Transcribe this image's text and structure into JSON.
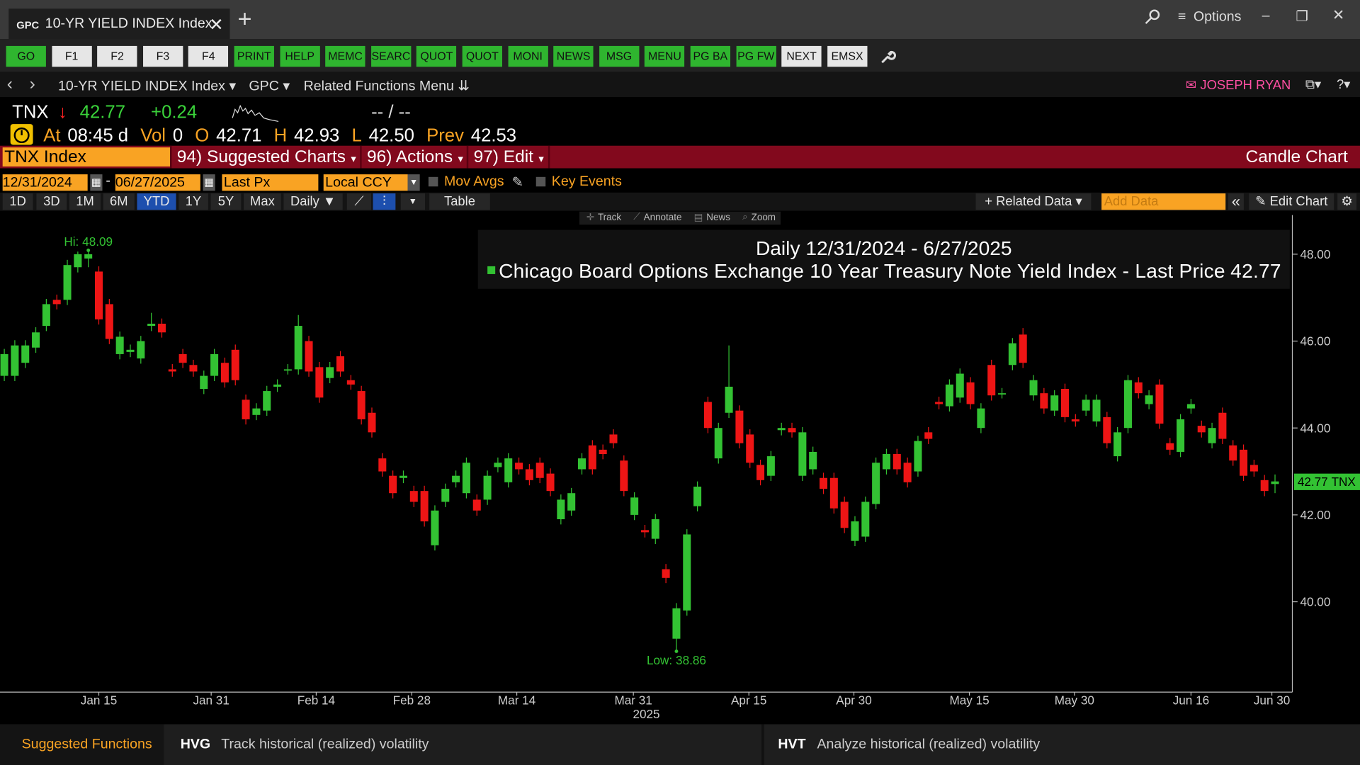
{
  "tab": {
    "prefix": "GPC",
    "title": "10-YR YIELD INDEX Index"
  },
  "window": {
    "options": "Options"
  },
  "toolbar": [
    {
      "label": "GO",
      "color": "#2fb52f"
    },
    {
      "label": "F1",
      "color": "#e6e6e6"
    },
    {
      "label": "F2",
      "color": "#e6e6e6"
    },
    {
      "label": "F3",
      "color": "#e6e6e6"
    },
    {
      "label": "F4",
      "color": "#e6e6e6"
    },
    {
      "label": "PRINT",
      "color": "#2fb52f"
    },
    {
      "label": "HELP",
      "color": "#2fb52f"
    },
    {
      "label": "MEMC",
      "color": "#2fb52f"
    },
    {
      "label": "SEARC",
      "color": "#2fb52f"
    },
    {
      "label": "QUOT",
      "color": "#2fb52f"
    },
    {
      "label": "QUOT",
      "color": "#2fb52f"
    },
    {
      "label": "MONI",
      "color": "#2fb52f"
    },
    {
      "label": "NEWS",
      "color": "#2fb52f"
    },
    {
      "label": "MSG",
      "color": "#2fb52f"
    },
    {
      "label": "MENU",
      "color": "#2fb52f"
    },
    {
      "label": "PG BA",
      "color": "#2fb52f"
    },
    {
      "label": "PG FW",
      "color": "#2fb52f"
    },
    {
      "label": "NEXT",
      "color": "#e6e6e6"
    },
    {
      "label": "EMSX",
      "color": "#e6e6e6"
    }
  ],
  "nav": {
    "security": "10-YR YIELD INDEX Index",
    "source": "GPC",
    "menu": "Related Functions Menu",
    "user": "JOSEPH RYAN"
  },
  "quote": {
    "ticker": "TNX",
    "last": "42.77",
    "change": "+0.24",
    "bid_ask": "-- / --",
    "stats": [
      {
        "label": "At",
        "value": "08:45 d"
      },
      {
        "label": "Vol",
        "value": "0"
      },
      {
        "label": "O",
        "value": "42.71"
      },
      {
        "label": "H",
        "value": "42.93"
      },
      {
        "label": "L",
        "value": "42.50"
      },
      {
        "label": "Prev",
        "value": "42.53"
      }
    ]
  },
  "security_bar": {
    "field": "TNX Index",
    "menus": [
      "94) Suggested Charts",
      "96) Actions",
      "97) Edit"
    ],
    "chart_type": "Candle Chart"
  },
  "controls": {
    "start": "12/31/2024",
    "separator": "-",
    "end": "06/27/2025",
    "field": "Last Px",
    "currency": "Local CCY",
    "checks": [
      "Mov Avgs",
      "Key Events"
    ],
    "ranges": [
      {
        "label": "1D"
      },
      {
        "label": "3D"
      },
      {
        "label": "1M"
      },
      {
        "label": "6M"
      },
      {
        "label": "YTD",
        "active": true
      },
      {
        "label": "1Y"
      },
      {
        "label": "5Y"
      },
      {
        "label": "Max"
      }
    ],
    "frequency": "Daily",
    "table": "Table",
    "related": "Related Data",
    "add": "Add Data",
    "edit": "Edit Chart"
  },
  "chart_tools": [
    "Track",
    "Annotate",
    "News",
    "Zoom"
  ],
  "chart_data": {
    "type": "candlestick",
    "title": "Daily 12/31/2024 - 6/27/2025",
    "series_name": "Chicago Board Options Exchange 10 Year Treasury Note Yield Index - Last Price",
    "up_color": "#33c233",
    "down_color": "#ee1515",
    "hi_label": "Hi:",
    "low_label": "Low:",
    "ylim": [
      37.92,
      48.7
    ],
    "yticks": [
      {
        "value": 40,
        "label": "40.00"
      },
      {
        "value": 42,
        "label": "42.00"
      },
      {
        "value": 44,
        "label": "44.00"
      },
      {
        "value": 46,
        "label": "46.00"
      },
      {
        "value": 48,
        "label": "48.00"
      }
    ],
    "xlim": [
      -0.41,
      122.65
    ],
    "xticks": [
      {
        "value": 9,
        "label": "Jan 15"
      },
      {
        "value": 19.7,
        "label": "Jan 31"
      },
      {
        "value": 29.7,
        "label": "Feb 14"
      },
      {
        "value": 38.8,
        "label": "Feb 28"
      },
      {
        "value": 48.8,
        "label": "Mar 14"
      },
      {
        "value": 59.9,
        "label": "Mar 31",
        "sublabel": "2025"
      },
      {
        "value": 70.9,
        "label": "Apr 15"
      },
      {
        "value": 80.9,
        "label": "Apr 30"
      },
      {
        "value": 91.9,
        "label": "May 15"
      },
      {
        "value": 101.9,
        "label": "May 30"
      },
      {
        "value": 113,
        "label": "Jun 16"
      },
      {
        "value": 120.7,
        "label": "Jun 30"
      }
    ],
    "open": [
      45.2,
      45.2,
      45.5,
      45.85,
      46.35,
      46.95,
      46.95,
      47.7,
      47.9,
      47.6,
      46.85,
      45.7,
      45.75,
      45.6,
      46.35,
      46.4,
      45.35,
      45.7,
      45.45,
      44.9,
      45.2,
      45.5,
      45.8,
      44.65,
      44.3,
      44.4,
      44.95,
      45.35,
      45.35,
      46.0,
      45.4,
      45.15,
      45.65,
      45.1,
      44.85,
      44.35,
      43.3,
      42.9,
      42.85,
      42.55,
      42.55,
      41.3,
      42.3,
      42.75,
      42.5,
      42.35,
      42.35,
      43.1,
      42.75,
      43.2,
      43.05,
      43.2,
      42.95,
      41.9,
      42.1,
      43.05,
      43.6,
      43.5,
      43.85,
      43.25,
      42.0,
      41.65,
      41.45,
      40.75,
      39.15,
      39.8,
      42.2,
      44.6,
      43.3,
      44.35,
      44.4,
      43.85,
      43.15,
      42.9,
      43.95,
      44.0,
      42.9,
      43.05,
      42.85,
      42.85,
      42.3,
      41.4,
      41.5,
      42.25,
      43.05,
      43.4,
      43.2,
      43.0,
      43.9,
      44.6,
      44.5,
      44.7,
      45.05,
      44.0,
      45.45,
      44.8,
      45.45,
      46.15,
      44.75,
      44.8,
      44.4,
      44.9,
      44.2,
      44.4,
      44.15,
      44.25,
      43.35,
      44.0,
      45.05,
      44.55,
      45.0,
      43.65,
      43.45,
      44.45,
      44.05,
      43.65,
      44.35,
      43.6,
      43.5,
      43.15,
      42.8,
      42.71
    ],
    "high": [
      45.82,
      46.02,
      46.02,
      46.32,
      46.97,
      47.07,
      47.87,
      48.06,
      48.09,
      47.72,
      46.97,
      46.22,
      45.92,
      46.12,
      46.65,
      46.52,
      45.47,
      45.82,
      45.57,
      45.32,
      45.82,
      45.62,
      45.92,
      44.77,
      44.57,
      44.97,
      45.12,
      45.47,
      46.6,
      46.12,
      45.52,
      45.52,
      45.77,
      45.22,
      44.97,
      44.47,
      43.42,
      43.02,
      43.02,
      42.67,
      42.67,
      42.22,
      42.72,
      43.02,
      43.32,
      42.47,
      43.02,
      43.32,
      43.42,
      43.32,
      43.17,
      43.32,
      43.07,
      42.47,
      42.62,
      43.42,
      43.72,
      43.62,
      43.97,
      43.37,
      42.52,
      41.77,
      42.02,
      40.87,
      39.97,
      41.67,
      42.77,
      44.72,
      44.12,
      45.9,
      44.52,
      43.97,
      43.27,
      43.47,
      44.12,
      44.12,
      44.02,
      43.57,
      42.97,
      42.97,
      42.42,
      41.97,
      42.42,
      43.32,
      43.52,
      43.52,
      43.32,
      43.82,
      44.02,
      44.72,
      45.12,
      45.37,
      45.17,
      44.57,
      45.57,
      44.92,
      46.07,
      46.3,
      45.22,
      44.92,
      44.87,
      45.02,
      44.32,
      44.77,
      44.77,
      44.37,
      44.02,
      45.22,
      45.17,
      44.87,
      45.12,
      43.77,
      44.32,
      44.67,
      44.17,
      44.12,
      44.47,
      43.72,
      43.62,
      43.27,
      42.92,
      42.93
    ],
    "low": [
      45.08,
      45.08,
      45.38,
      45.73,
      46.23,
      46.73,
      46.83,
      47.58,
      47.7,
      46.38,
      45.93,
      45.58,
      45.63,
      45.48,
      46.23,
      46.08,
      45.18,
      45.38,
      45.18,
      44.78,
      45.08,
      44.93,
      44.98,
      44.08,
      44.18,
      44.28,
      44.83,
      45.23,
      45.23,
      45.18,
      44.58,
      45.03,
      45.18,
      44.88,
      44.08,
      43.78,
      42.88,
      42.38,
      42.73,
      42.18,
      41.73,
      41.18,
      42.18,
      42.63,
      42.38,
      41.98,
      42.23,
      42.98,
      42.63,
      42.93,
      42.68,
      42.73,
      42.43,
      41.78,
      41.98,
      42.93,
      42.93,
      43.28,
      43.53,
      42.43,
      41.88,
      41.48,
      41.33,
      40.43,
      38.86,
      39.68,
      42.08,
      43.88,
      43.18,
      44.23,
      43.53,
      43.08,
      42.68,
      42.78,
      43.83,
      43.78,
      42.78,
      42.93,
      42.48,
      42.03,
      41.58,
      41.28,
      41.38,
      42.13,
      42.93,
      42.93,
      42.63,
      42.88,
      43.63,
      44.43,
      44.38,
      44.58,
      44.43,
      43.88,
      44.63,
      44.68,
      45.33,
      45.38,
      44.63,
      44.33,
      44.28,
      44.13,
      44.03,
      44.28,
      44.03,
      43.53,
      43.23,
      43.88,
      44.68,
      44.43,
      43.98,
      43.38,
      43.33,
      44.33,
      43.78,
      43.53,
      43.63,
      43.13,
      42.78,
      42.88,
      42.43,
      42.5
    ],
    "close": [
      45.7,
      45.9,
      45.9,
      46.2,
      46.85,
      46.85,
      47.75,
      48.0,
      48.0,
      46.5,
      46.05,
      46.1,
      45.8,
      46.0,
      46.4,
      46.2,
      45.3,
      45.5,
      45.3,
      45.2,
      45.7,
      45.05,
      45.1,
      44.2,
      44.45,
      44.85,
      45.0,
      45.35,
      46.35,
      45.3,
      44.7,
      45.4,
      45.3,
      45.0,
      44.2,
      43.9,
      43.0,
      42.5,
      42.9,
      42.3,
      41.85,
      42.1,
      42.6,
      42.9,
      43.2,
      42.1,
      42.9,
      43.2,
      43.3,
      43.05,
      42.8,
      42.85,
      42.55,
      42.35,
      42.5,
      43.3,
      43.05,
      43.4,
      43.65,
      42.55,
      42.4,
      41.6,
      41.9,
      40.55,
      39.85,
      41.55,
      42.65,
      44.0,
      44.0,
      44.95,
      43.65,
      43.2,
      42.8,
      43.35,
      44.0,
      43.9,
      43.9,
      43.45,
      42.6,
      42.15,
      41.7,
      41.85,
      42.3,
      43.2,
      43.4,
      43.05,
      42.75,
      43.7,
      43.75,
      44.55,
      45.0,
      45.25,
      44.55,
      44.45,
      44.75,
      44.8,
      45.95,
      45.5,
      45.1,
      44.45,
      44.75,
      44.25,
      44.15,
      44.65,
      44.65,
      43.65,
      43.9,
      45.1,
      44.8,
      44.75,
      44.1,
      43.5,
      44.2,
      44.55,
      43.9,
      44.0,
      43.75,
      43.25,
      42.9,
      43.0,
      42.55,
      42.77
    ]
  },
  "footer": {
    "title": "Suggested Functions",
    "functions": [
      {
        "code": "HVG",
        "description": "Track historical (realized) volatility"
      },
      {
        "code": "HVT",
        "description": "Analyze historical (realized) volatility"
      }
    ]
  }
}
